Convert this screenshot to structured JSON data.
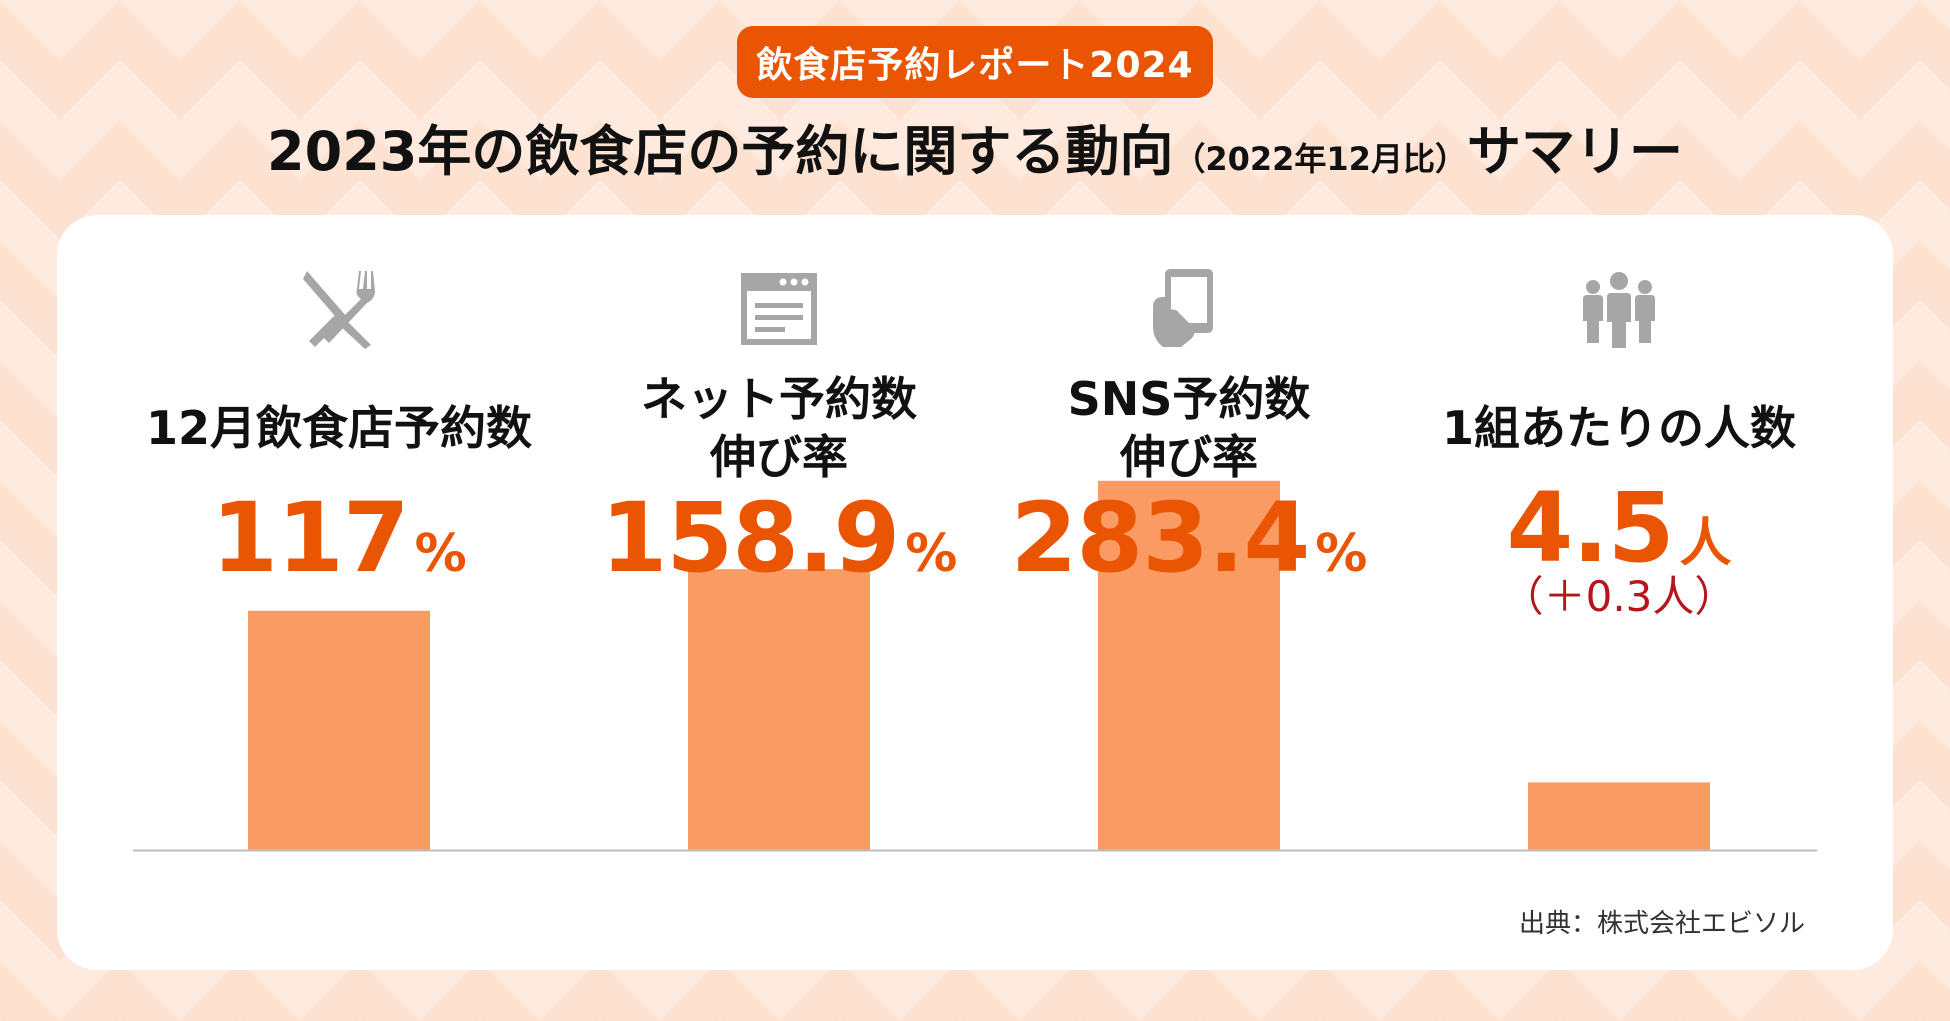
{
  "header": {
    "badge": "飲食店予約レポート2024",
    "title_main": "2023年の飲食店の予約に関する動向",
    "title_note": "（2022年12月比）",
    "title_tail": "サマリー"
  },
  "chart_data": {
    "type": "bar",
    "categories": [
      "12月飲食店予約数",
      "ネット予約数伸び率",
      "SNS予約数伸び率",
      "1組あたりの人数"
    ],
    "values": [
      117,
      158.9,
      283.4,
      4.5
    ],
    "units": [
      "%",
      "%",
      "%",
      "人"
    ],
    "bar_color": "#fa9b63"
  },
  "columns": [
    {
      "icon": "cutlery-icon",
      "label_lines": [
        "12月飲食店予約数"
      ],
      "value": "117",
      "unit": "%",
      "bar_fraction": 0.46
    },
    {
      "icon": "browser-window-icon",
      "label_lines": [
        "ネット予約数",
        "伸び率"
      ],
      "value": "158.9",
      "unit": "%",
      "bar_fraction": 0.54
    },
    {
      "icon": "smartphone-hand-icon",
      "label_lines": [
        "SNS予約数",
        "伸び率"
      ],
      "value": "283.4",
      "unit": "%",
      "bar_fraction": 0.71
    },
    {
      "icon": "people-group-icon",
      "label_lines": [
        "1組あたりの人数"
      ],
      "value": "4.5",
      "unit": "人",
      "sub": "（＋0.3人）",
      "bar_fraction": 0.13
    }
  ],
  "source": "出典：株式会社エビソル",
  "colors": {
    "accent": "#ea5504",
    "bar": "#fa9b63",
    "icon": "#a6a6a6",
    "sub_text": "#b4161b",
    "background": "#fde2d2"
  }
}
